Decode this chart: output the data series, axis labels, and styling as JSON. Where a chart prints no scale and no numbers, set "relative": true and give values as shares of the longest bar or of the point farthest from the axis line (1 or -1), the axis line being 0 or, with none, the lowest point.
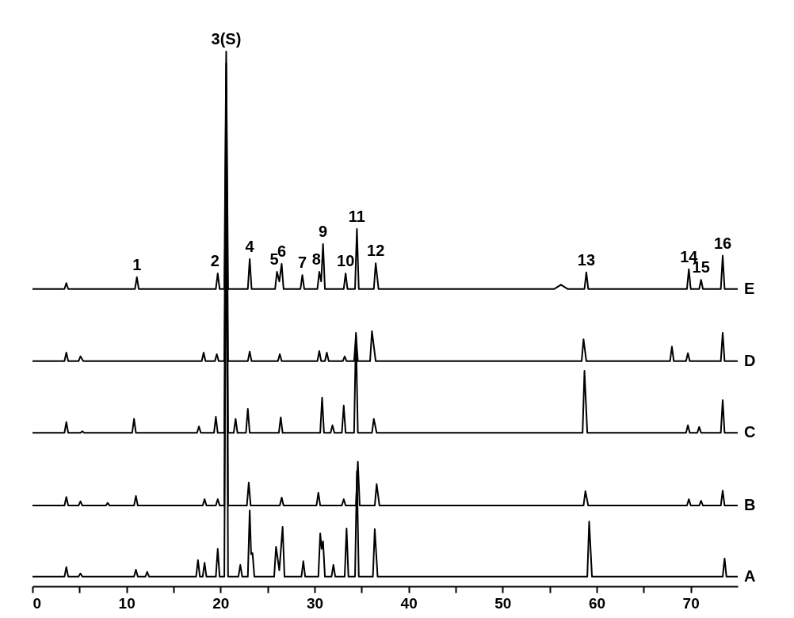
{
  "chart_data": {
    "type": "line",
    "relative": true,
    "xlim": [
      0,
      75
    ],
    "xticks": [
      0,
      {
        "value": 5,
        "label": null
      },
      10,
      {
        "value": 15,
        "label": null
      },
      20,
      {
        "value": 25,
        "label": null
      },
      30,
      {
        "value": 35,
        "label": null
      },
      40,
      {
        "value": 45,
        "label": null
      },
      50,
      {
        "value": 55,
        "label": null
      },
      60,
      {
        "value": 65,
        "label": null
      },
      70
    ],
    "series": [
      {
        "name": "E",
        "color": "#000000",
        "x": [
          0,
          3.4,
          3.6,
          3.8,
          10.9,
          11.1,
          11.3,
          19.5,
          19.7,
          19.9,
          20.4,
          20.6,
          20.8,
          22.9,
          23.1,
          23.3,
          25.8,
          26.0,
          26.25,
          26.5,
          26.7,
          28.5,
          28.7,
          28.9,
          30.3,
          30.5,
          30.7,
          30.9,
          31.1,
          33.1,
          33.3,
          33.5,
          34.3,
          34.5,
          34.7,
          36.3,
          36.5,
          36.8,
          55.5,
          56.2,
          56.9,
          58.7,
          58.9,
          59.1,
          69.6,
          69.8,
          70.0,
          70.9,
          71.1,
          71.3,
          73.2,
          73.4,
          73.6,
          75
        ],
        "values": [
          0.556,
          0.556,
          0.567,
          0.556,
          0.556,
          0.578,
          0.556,
          0.556,
          0.585,
          0.556,
          0.556,
          1.0,
          0.556,
          0.556,
          0.612,
          0.556,
          0.556,
          0.588,
          0.57,
          0.603,
          0.556,
          0.556,
          0.582,
          0.556,
          0.556,
          0.588,
          0.57,
          0.64,
          0.556,
          0.556,
          0.585,
          0.556,
          0.556,
          0.668,
          0.556,
          0.556,
          0.604,
          0.556,
          0.556,
          0.564,
          0.556,
          0.556,
          0.587,
          0.556,
          0.556,
          0.593,
          0.556,
          0.556,
          0.573,
          0.556,
          0.556,
          0.618,
          0.556,
          0.556
        ]
      },
      {
        "name": "D",
        "color": "#000000",
        "x": [
          0,
          3.4,
          3.6,
          3.8,
          4.9,
          5.1,
          5.4,
          18.0,
          18.2,
          18.4,
          19.4,
          19.6,
          19.8,
          20.4,
          20.6,
          20.8,
          22.9,
          23.1,
          23.3,
          26.1,
          26.3,
          26.5,
          30.3,
          30.5,
          30.7,
          31.1,
          31.3,
          31.5,
          33.0,
          33.2,
          33.4,
          34.2,
          34.4,
          34.6,
          35.9,
          36.1,
          36.5,
          58.4,
          58.6,
          58.9,
          67.8,
          68.0,
          68.2,
          69.5,
          69.7,
          69.9,
          73.2,
          73.4,
          73.6,
          75
        ],
        "values": [
          0.421,
          0.421,
          0.437,
          0.421,
          0.421,
          0.43,
          0.421,
          0.421,
          0.437,
          0.421,
          0.421,
          0.434,
          0.421,
          0.421,
          0.978,
          0.421,
          0.421,
          0.439,
          0.421,
          0.421,
          0.434,
          0.421,
          0.421,
          0.44,
          0.421,
          0.421,
          0.437,
          0.421,
          0.421,
          0.43,
          0.421,
          0.421,
          0.47,
          0.421,
          0.421,
          0.477,
          0.421,
          0.421,
          0.462,
          0.421,
          0.421,
          0.448,
          0.421,
          0.421,
          0.436,
          0.421,
          0.421,
          0.474,
          0.421,
          0.421
        ]
      },
      {
        "name": "C",
        "color": "#000000",
        "x": [
          0,
          3.4,
          3.6,
          3.8,
          5.1,
          5.3,
          5.5,
          10.6,
          10.8,
          11.0,
          17.5,
          17.7,
          17.9,
          19.3,
          19.5,
          19.7,
          20.4,
          20.6,
          20.8,
          21.4,
          21.6,
          21.8,
          22.7,
          22.9,
          23.1,
          26.2,
          26.4,
          26.6,
          30.6,
          30.8,
          31.0,
          31.7,
          31.9,
          32.1,
          32.9,
          33.1,
          33.3,
          34.2,
          34.4,
          34.6,
          36.1,
          36.3,
          36.6,
          58.5,
          58.7,
          59.0,
          69.5,
          69.7,
          69.9,
          70.7,
          70.9,
          71.1,
          73.2,
          73.4,
          73.6,
          75
        ],
        "values": [
          0.287,
          0.287,
          0.307,
          0.287,
          0.287,
          0.29,
          0.287,
          0.287,
          0.313,
          0.287,
          0.287,
          0.299,
          0.287,
          0.287,
          0.317,
          0.287,
          0.287,
          0.933,
          0.287,
          0.287,
          0.313,
          0.287,
          0.287,
          0.332,
          0.287,
          0.287,
          0.316,
          0.287,
          0.287,
          0.353,
          0.287,
          0.287,
          0.301,
          0.287,
          0.287,
          0.338,
          0.287,
          0.287,
          0.474,
          0.287,
          0.287,
          0.313,
          0.287,
          0.287,
          0.403,
          0.287,
          0.287,
          0.301,
          0.287,
          0.287,
          0.298,
          0.287,
          0.287,
          0.348,
          0.287,
          0.287
        ]
      },
      {
        "name": "B",
        "color": "#000000",
        "x": [
          0,
          3.4,
          3.6,
          3.8,
          4.9,
          5.1,
          5.3,
          7.8,
          8.0,
          8.2,
          10.8,
          11.0,
          11.2,
          18.1,
          18.3,
          18.5,
          19.5,
          19.7,
          19.9,
          20.4,
          20.6,
          20.8,
          22.8,
          23.0,
          23.2,
          26.3,
          26.5,
          26.7,
          30.2,
          30.4,
          30.6,
          32.9,
          33.1,
          33.3,
          34.4,
          34.6,
          34.8,
          36.4,
          36.6,
          36.9,
          58.6,
          58.8,
          59.1,
          69.6,
          69.8,
          70.0,
          70.9,
          71.1,
          71.3,
          73.2,
          73.4,
          73.6,
          75
        ],
        "values": [
          0.151,
          0.151,
          0.167,
          0.151,
          0.151,
          0.159,
          0.151,
          0.151,
          0.156,
          0.151,
          0.151,
          0.169,
          0.151,
          0.151,
          0.163,
          0.151,
          0.151,
          0.163,
          0.151,
          0.151,
          0.889,
          0.151,
          0.151,
          0.194,
          0.151,
          0.151,
          0.166,
          0.151,
          0.151,
          0.175,
          0.151,
          0.151,
          0.163,
          0.151,
          0.151,
          0.233,
          0.151,
          0.151,
          0.191,
          0.151,
          0.151,
          0.178,
          0.151,
          0.151,
          0.163,
          0.151,
          0.151,
          0.16,
          0.151,
          0.151,
          0.179,
          0.151,
          0.151
        ]
      },
      {
        "name": "A",
        "color": "#000000",
        "x": [
          0,
          3.4,
          3.6,
          3.8,
          4.9,
          5.1,
          5.3,
          10.8,
          11.0,
          11.2,
          12.0,
          12.2,
          12.4,
          17.4,
          17.6,
          17.8,
          18.1,
          18.3,
          18.5,
          19.5,
          19.7,
          19.9,
          20.4,
          20.6,
          20.8,
          21.9,
          22.1,
          22.3,
          22.9,
          23.1,
          23.25,
          23.4,
          23.6,
          25.7,
          25.9,
          26.25,
          26.6,
          26.8,
          28.6,
          28.8,
          29.0,
          30.4,
          30.6,
          30.75,
          30.9,
          31.1,
          31.8,
          32.0,
          32.2,
          33.2,
          33.4,
          33.6,
          34.3,
          34.5,
          34.7,
          36.2,
          36.4,
          36.7,
          59.0,
          59.2,
          59.5,
          73.4,
          73.6,
          73.8,
          75
        ],
        "values": [
          0.018,
          0.018,
          0.036,
          0.018,
          0.018,
          0.024,
          0.018,
          0.018,
          0.031,
          0.018,
          0.018,
          0.027,
          0.018,
          0.018,
          0.049,
          0.018,
          0.018,
          0.044,
          0.018,
          0.018,
          0.07,
          0.018,
          0.018,
          0.844,
          0.018,
          0.018,
          0.04,
          0.018,
          0.018,
          0.142,
          0.06,
          0.062,
          0.018,
          0.018,
          0.074,
          0.03,
          0.111,
          0.018,
          0.018,
          0.047,
          0.018,
          0.018,
          0.099,
          0.07,
          0.084,
          0.018,
          0.018,
          0.04,
          0.018,
          0.018,
          0.108,
          0.018,
          0.018,
          0.215,
          0.018,
          0.018,
          0.107,
          0.018,
          0.018,
          0.121,
          0.018,
          0.018,
          0.052,
          0.018,
          0.018
        ]
      }
    ],
    "annotations": [
      {
        "text": "1",
        "x": 11.1,
        "y": 0.578
      },
      {
        "text": "2",
        "x": 19.7,
        "y": 0.585
      },
      {
        "text": "3(S)",
        "x": 20.6,
        "y": 1.0
      },
      {
        "text": "4",
        "x": 23.1,
        "y": 0.612
      },
      {
        "text": "5",
        "x": 26.0,
        "y": 0.588
      },
      {
        "text": "6",
        "x": 26.5,
        "y": 0.603
      },
      {
        "text": "7",
        "x": 28.7,
        "y": 0.582
      },
      {
        "text": "8",
        "x": 30.5,
        "y": 0.588
      },
      {
        "text": "9",
        "x": 30.9,
        "y": 0.64
      },
      {
        "text": "10",
        "x": 33.3,
        "y": 0.585
      },
      {
        "text": "11",
        "x": 34.5,
        "y": 0.668
      },
      {
        "text": "12",
        "x": 36.5,
        "y": 0.604
      },
      {
        "text": "13",
        "x": 58.9,
        "y": 0.587
      },
      {
        "text": "14",
        "x": 69.8,
        "y": 0.593
      },
      {
        "text": "15",
        "x": 71.1,
        "y": 0.573
      },
      {
        "text": "16",
        "x": 73.4,
        "y": 0.618
      }
    ]
  }
}
